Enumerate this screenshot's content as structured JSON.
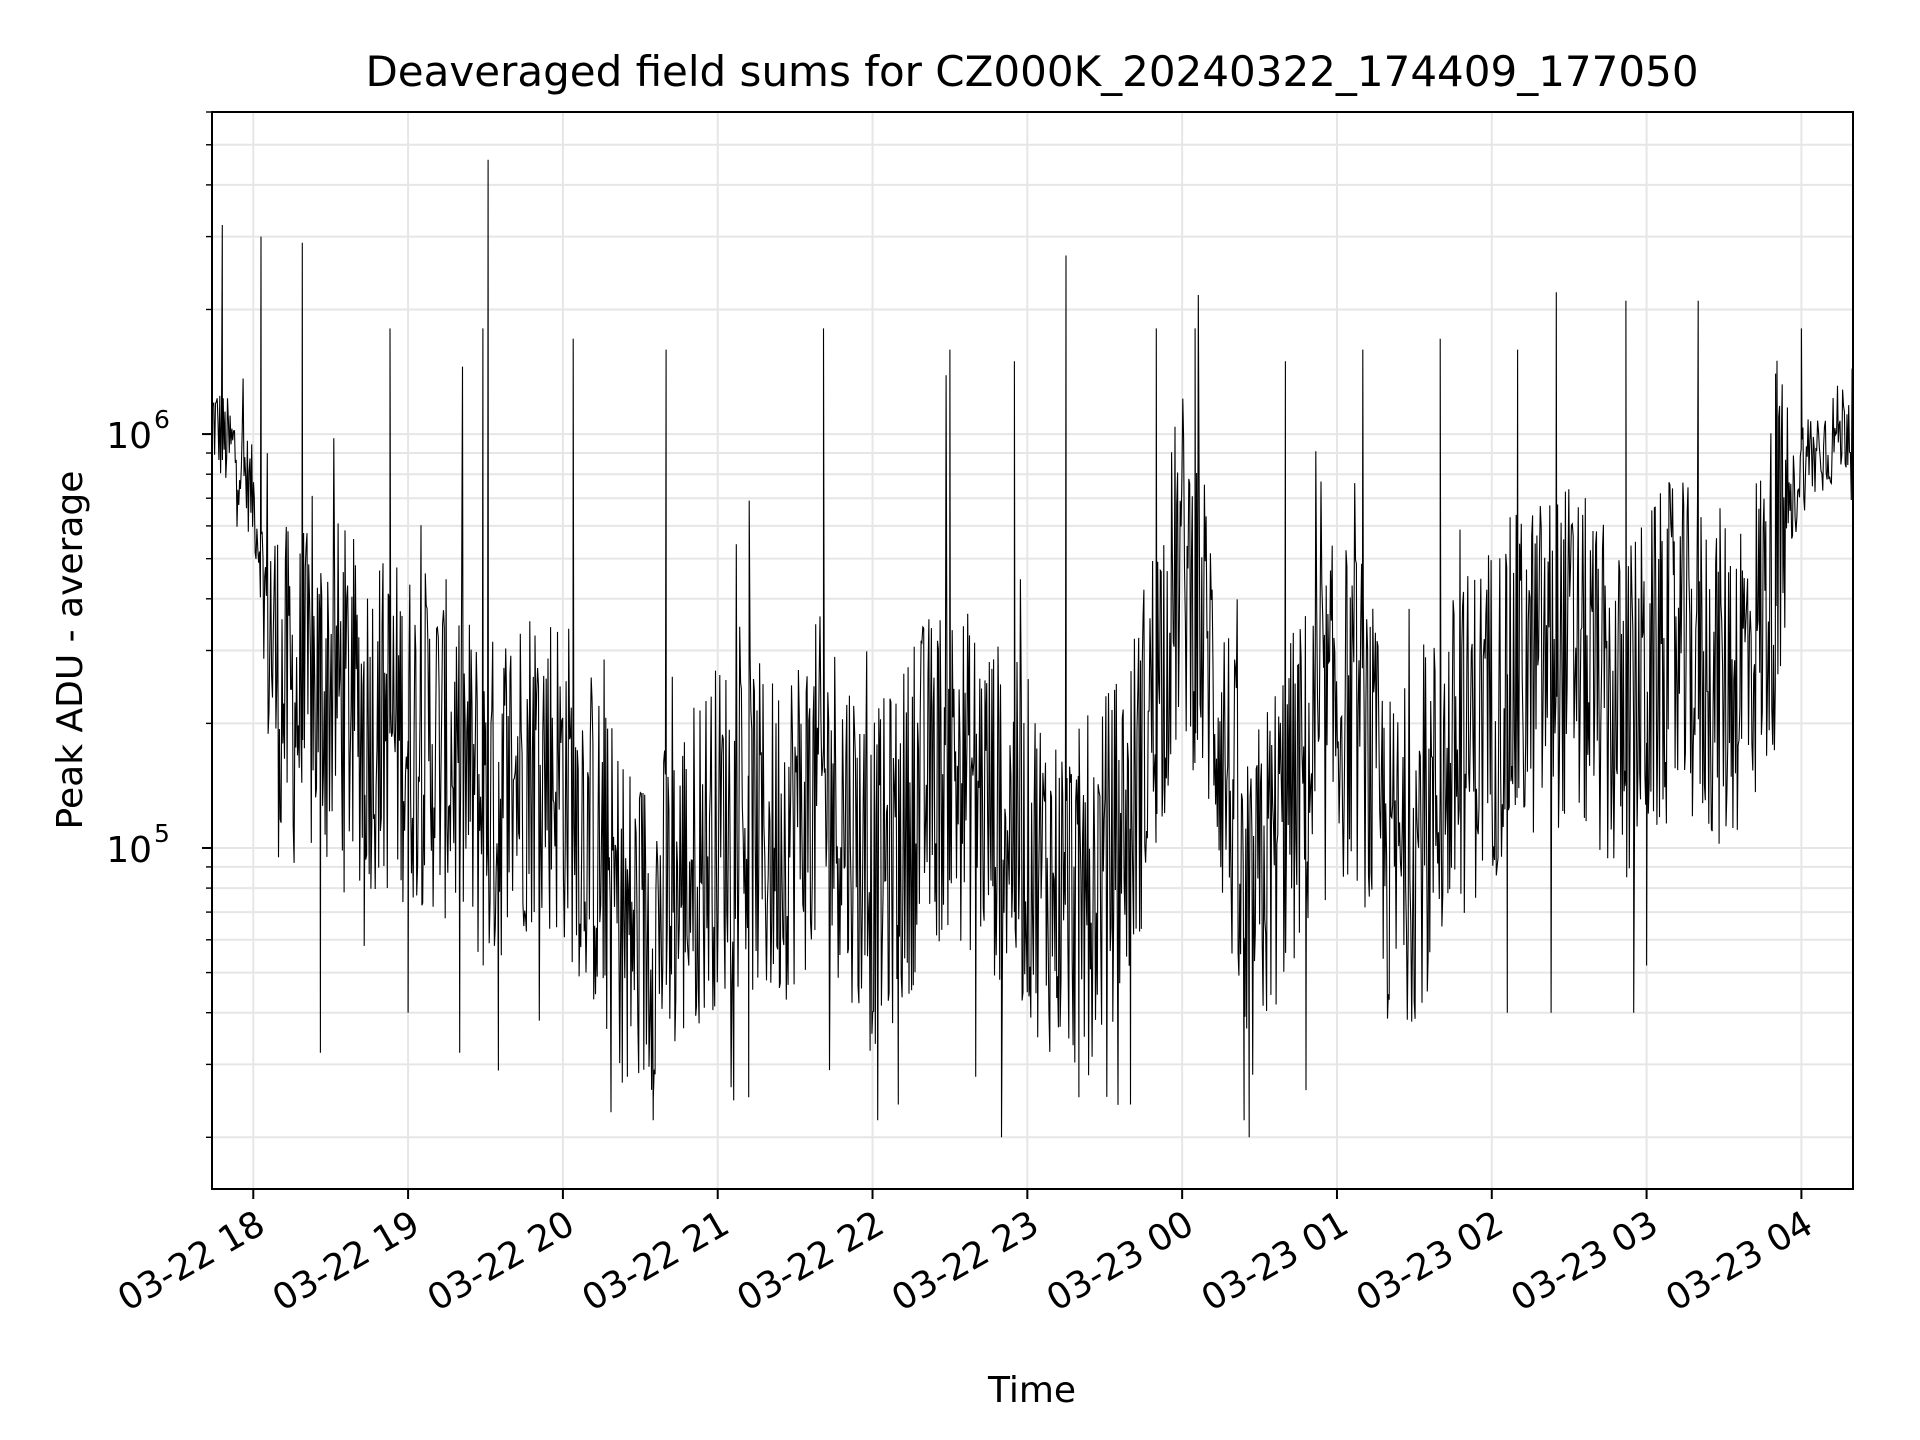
{
  "chart_data": {
    "type": "line",
    "title": "Deaveraged field sums for CZ000K_20240322_174409_177050",
    "xlabel": "Time",
    "ylabel": "Peak ADU - average",
    "x_range": [
      "2024-03-22 17:44",
      "2024-03-23 04:20"
    ],
    "x_tick_labels": [
      "03-22 18",
      "03-22 19",
      "03-22 20",
      "03-22 21",
      "03-22 22",
      "03-22 23",
      "03-23 00",
      "03-23 01",
      "03-23 02",
      "03-23 03",
      "03-23 04"
    ],
    "y_scale": "log",
    "ylim": [
      15000,
      6000000
    ],
    "y_tick_labels": [
      {
        "base": "10",
        "exp": "5",
        "value": 100000
      },
      {
        "base": "10",
        "exp": "6",
        "value": 1000000
      }
    ],
    "grid": true,
    "line_color": "#000000",
    "series": [
      {
        "points": [
          [
            "2024-03-22 17:44",
            1100000
          ],
          [
            "2024-03-22 17:49",
            950000
          ],
          [
            "2024-03-22 17:54",
            900000
          ],
          [
            "2024-03-22 18:00",
            700000
          ],
          [
            "2024-03-22 18:05",
            420000
          ],
          [
            "2024-03-22 18:10",
            240000
          ],
          [
            "2024-03-22 18:20",
            220000
          ],
          [
            "2024-03-22 18:30",
            260000
          ],
          [
            "2024-03-22 18:40",
            210000
          ],
          [
            "2024-03-22 18:50",
            200000
          ],
          [
            "2024-03-22 19:00",
            190000
          ],
          [
            "2024-03-22 19:10",
            180000
          ],
          [
            "2024-03-22 19:20",
            160000
          ],
          [
            "2024-03-22 19:30",
            120000
          ],
          [
            "2024-03-22 19:40",
            150000
          ],
          [
            "2024-03-22 19:50",
            170000
          ],
          [
            "2024-03-22 20:00",
            150000
          ],
          [
            "2024-03-22 20:10",
            110000
          ],
          [
            "2024-03-22 20:20",
            75000
          ],
          [
            "2024-03-22 20:30",
            60000
          ],
          [
            "2024-03-22 20:40",
            70000
          ],
          [
            "2024-03-22 20:50",
            90000
          ],
          [
            "2024-03-22 21:00",
            110000
          ],
          [
            "2024-03-22 21:10",
            120000
          ],
          [
            "2024-03-22 21:20",
            100000
          ],
          [
            "2024-03-22 21:30",
            120000
          ],
          [
            "2024-03-22 21:40",
            140000
          ],
          [
            "2024-03-22 21:50",
            120000
          ],
          [
            "2024-03-22 22:00",
            80000
          ],
          [
            "2024-03-22 22:10",
            100000
          ],
          [
            "2024-03-22 22:20",
            140000
          ],
          [
            "2024-03-22 22:30",
            160000
          ],
          [
            "2024-03-22 22:40",
            140000
          ],
          [
            "2024-03-22 22:50",
            120000
          ],
          [
            "2024-03-22 23:00",
            100000
          ],
          [
            "2024-03-22 23:10",
            80000
          ],
          [
            "2024-03-22 23:20",
            75000
          ],
          [
            "2024-03-22 23:30",
            90000
          ],
          [
            "2024-03-22 23:40",
            120000
          ],
          [
            "2024-03-22 23:50",
            250000
          ],
          [
            "2024-03-23 00:00",
            500000
          ],
          [
            "2024-03-23 00:10",
            300000
          ],
          [
            "2024-03-23 00:20",
            120000
          ],
          [
            "2024-03-23 00:25",
            50000
          ],
          [
            "2024-03-23 00:30",
            80000
          ],
          [
            "2024-03-23 00:40",
            120000
          ],
          [
            "2024-03-23 00:50",
            160000
          ],
          [
            "2024-03-23 01:00",
            220000
          ],
          [
            "2024-03-23 01:10",
            200000
          ],
          [
            "2024-03-23 01:20",
            90000
          ],
          [
            "2024-03-23 01:30",
            100000
          ],
          [
            "2024-03-23 01:40",
            140000
          ],
          [
            "2024-03-23 01:50",
            180000
          ],
          [
            "2024-03-23 02:00",
            220000
          ],
          [
            "2024-03-23 02:10",
            250000
          ],
          [
            "2024-03-23 02:20",
            280000
          ],
          [
            "2024-03-23 02:30",
            300000
          ],
          [
            "2024-03-23 02:40",
            250000
          ],
          [
            "2024-03-23 02:50",
            200000
          ],
          [
            "2024-03-23 03:00",
            250000
          ],
          [
            "2024-03-23 03:10",
            300000
          ],
          [
            "2024-03-23 03:20",
            280000
          ],
          [
            "2024-03-23 03:30",
            250000
          ],
          [
            "2024-03-23 03:40",
            300000
          ],
          [
            "2024-03-23 03:50",
            450000
          ],
          [
            "2024-03-23 04:00",
            850000
          ],
          [
            "2024-03-23 04:10",
            950000
          ],
          [
            "2024-03-23 04:20",
            1100000
          ]
        ],
        "peaks": [
          [
            "2024-03-22 17:48",
            3200000
          ],
          [
            "2024-03-22 18:03",
            3000000
          ],
          [
            "2024-03-22 18:19",
            2900000
          ],
          [
            "2024-03-22 18:53",
            1800000
          ],
          [
            "2024-03-22 19:29",
            1800000
          ],
          [
            "2024-03-22 19:31",
            4600000
          ],
          [
            "2024-03-22 20:04",
            1700000
          ],
          [
            "2024-03-22 20:40",
            1600000
          ],
          [
            "2024-03-22 21:41",
            1800000
          ],
          [
            "2024-03-22 22:30",
            1600000
          ],
          [
            "2024-03-22 22:55",
            1500000
          ],
          [
            "2024-03-22 23:15",
            2700000
          ],
          [
            "2024-03-22 23:50",
            1800000
          ],
          [
            "2024-03-23 00:05",
            1800000
          ],
          [
            "2024-03-23 00:40",
            1500000
          ],
          [
            "2024-03-23 01:10",
            1600000
          ],
          [
            "2024-03-23 01:40",
            1700000
          ],
          [
            "2024-03-23 02:10",
            1600000
          ],
          [
            "2024-03-23 02:25",
            2200000
          ],
          [
            "2024-03-23 02:52",
            2100000
          ],
          [
            "2024-03-23 03:20",
            2100000
          ],
          [
            "2024-03-23 03:50",
            1400000
          ],
          [
            "2024-03-23 04:00",
            1800000
          ]
        ],
        "troughs": [
          [
            "2024-03-22 18:26",
            32000
          ],
          [
            "2024-03-22 18:43",
            58000
          ],
          [
            "2024-03-22 19:00",
            40000
          ],
          [
            "2024-03-22 19:20",
            32000
          ],
          [
            "2024-03-22 19:35",
            29000
          ],
          [
            "2024-03-22 20:25",
            28000
          ],
          [
            "2024-03-22 20:35",
            22000
          ],
          [
            "2024-03-22 21:12",
            25000
          ],
          [
            "2024-03-22 22:02",
            22000
          ],
          [
            "2024-03-22 22:10",
            24000
          ],
          [
            "2024-03-22 22:40",
            28000
          ],
          [
            "2024-03-22 22:50",
            20000
          ],
          [
            "2024-03-22 23:20",
            25000
          ],
          [
            "2024-03-22 23:40",
            24000
          ],
          [
            "2024-03-23 00:24",
            22000
          ],
          [
            "2024-03-23 00:26",
            20000
          ],
          [
            "2024-03-23 00:48",
            26000
          ],
          [
            "2024-03-23 01:35",
            45000
          ],
          [
            "2024-03-23 02:06",
            40000
          ],
          [
            "2024-03-23 02:23",
            40000
          ],
          [
            "2024-03-23 02:55",
            40000
          ],
          [
            "2024-03-23 03:00",
            52000
          ]
        ]
      }
    ]
  }
}
